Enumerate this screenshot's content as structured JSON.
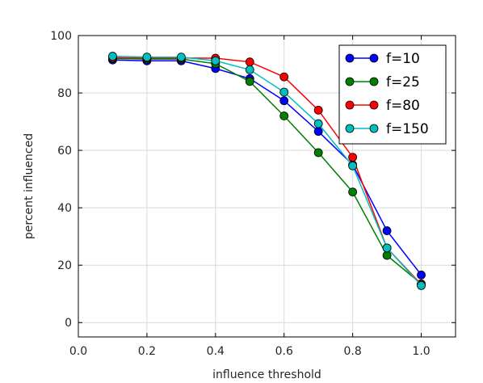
{
  "chart_data": {
    "type": "line",
    "xlabel": "influence threshold",
    "ylabel": "percent influenced",
    "xlim": [
      0.0,
      1.1
    ],
    "ylim": [
      -5,
      100
    ],
    "xticks": [
      0.0,
      0.2,
      0.4,
      0.6,
      0.8,
      1.0
    ],
    "xtick_labels": [
      "0.0",
      "0.2",
      "0.4",
      "0.6",
      "0.8",
      "1.0"
    ],
    "yticks": [
      0,
      20,
      40,
      60,
      80,
      100
    ],
    "ytick_labels": [
      "0",
      "20",
      "40",
      "60",
      "80",
      "100"
    ],
    "grid": true,
    "legend_position": "top-right",
    "x": [
      0.1,
      0.2,
      0.3,
      0.4,
      0.5,
      0.6,
      0.7,
      0.8,
      0.9,
      1.0
    ],
    "series": [
      {
        "name": "f=10",
        "color": "#0000ff",
        "values": [
          91.5,
          91.2,
          91.2,
          88.5,
          85.0,
          77.3,
          66.6,
          55.0,
          32.0,
          16.6
        ]
      },
      {
        "name": "f=25",
        "color": "#008000",
        "values": [
          92.0,
          91.8,
          91.8,
          90.2,
          84.0,
          72.0,
          59.2,
          45.5,
          23.4,
          13.5
        ]
      },
      {
        "name": "f=80",
        "color": "#ff0000",
        "values": [
          92.3,
          92.2,
          92.2,
          92.1,
          90.8,
          85.6,
          74.0,
          57.6,
          26.0,
          13.3
        ]
      },
      {
        "name": "f=150",
        "color": "#00bfbf",
        "values": [
          92.8,
          92.5,
          92.5,
          91.2,
          88.1,
          80.3,
          69.3,
          54.6,
          26.0,
          12.9
        ]
      }
    ]
  }
}
